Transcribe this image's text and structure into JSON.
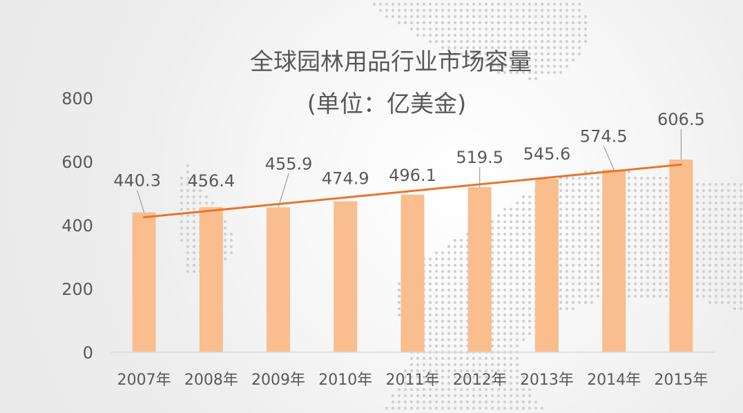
{
  "chart_data": {
    "type": "bar",
    "title": "全球园林用品行业市场容量",
    "subtitle": "(单位：亿美金)",
    "categories": [
      "2007年",
      "2008年",
      "2009年",
      "2010年",
      "2011年",
      "2012年",
      "2013年",
      "2014年",
      "2015年"
    ],
    "values": [
      440.3,
      456.4,
      455.9,
      474.9,
      496.1,
      519.5,
      545.6,
      574.5,
      606.5
    ],
    "value_labels": [
      "440.3",
      "456.4",
      "455.9",
      "474.9",
      "496.1",
      "519.5",
      "545.6",
      "574.5",
      "606.5"
    ],
    "y_ticks": [
      "0",
      "200",
      "400",
      "600",
      "800"
    ],
    "ylim": [
      0,
      800
    ],
    "grid": false,
    "legend": "none",
    "trendline": {
      "type": "linear",
      "color": "#E8742A"
    },
    "colors": {
      "bar": "#F9BD8E",
      "trend": "#E8742A",
      "text": "#595959",
      "axis": "#D9D9D9"
    }
  }
}
